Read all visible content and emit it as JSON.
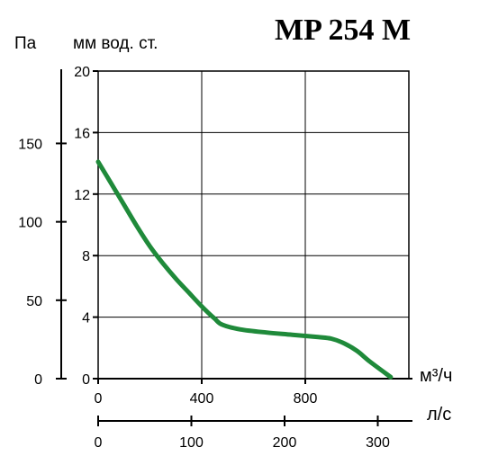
{
  "chart_data": {
    "type": "line",
    "title": "MP 254 M",
    "left_axis_unit": "Па",
    "right_axis_unit": "мм вод. ст.",
    "x_unit_primary": "м³/ч",
    "x_unit_secondary": "л/с",
    "pa_ticks": [
      "0",
      "50",
      "100",
      "150"
    ],
    "pa_tick_values": [
      0,
      50,
      100,
      150
    ],
    "mm_ticks": [
      "0",
      "4",
      "8",
      "12",
      "16",
      "20"
    ],
    "mm_tick_values": [
      0,
      4,
      8,
      12,
      16,
      20
    ],
    "x_ticks": [
      "0",
      "400",
      "800"
    ],
    "x_tick_values": [
      0,
      400,
      800
    ],
    "ls_ticks": [
      "0",
      "100",
      "200",
      "300"
    ],
    "ls_tick_values": [
      0,
      100,
      200,
      300
    ],
    "xlim": [
      0,
      1200
    ],
    "ylim": [
      0,
      20
    ],
    "grid": true,
    "series": [
      {
        "color": "#1f8a3a",
        "x": [
          0,
          50,
          100,
          150,
          200,
          250,
          300,
          350,
          400,
          450,
          480,
          550,
          650,
          750,
          850,
          900,
          950,
          1000,
          1050,
          1130
        ],
        "y": [
          14.1,
          12.7,
          11.3,
          9.9,
          8.6,
          7.5,
          6.5,
          5.6,
          4.7,
          3.9,
          3.5,
          3.2,
          3.0,
          2.85,
          2.7,
          2.6,
          2.3,
          1.8,
          1.1,
          0.1
        ]
      }
    ]
  }
}
